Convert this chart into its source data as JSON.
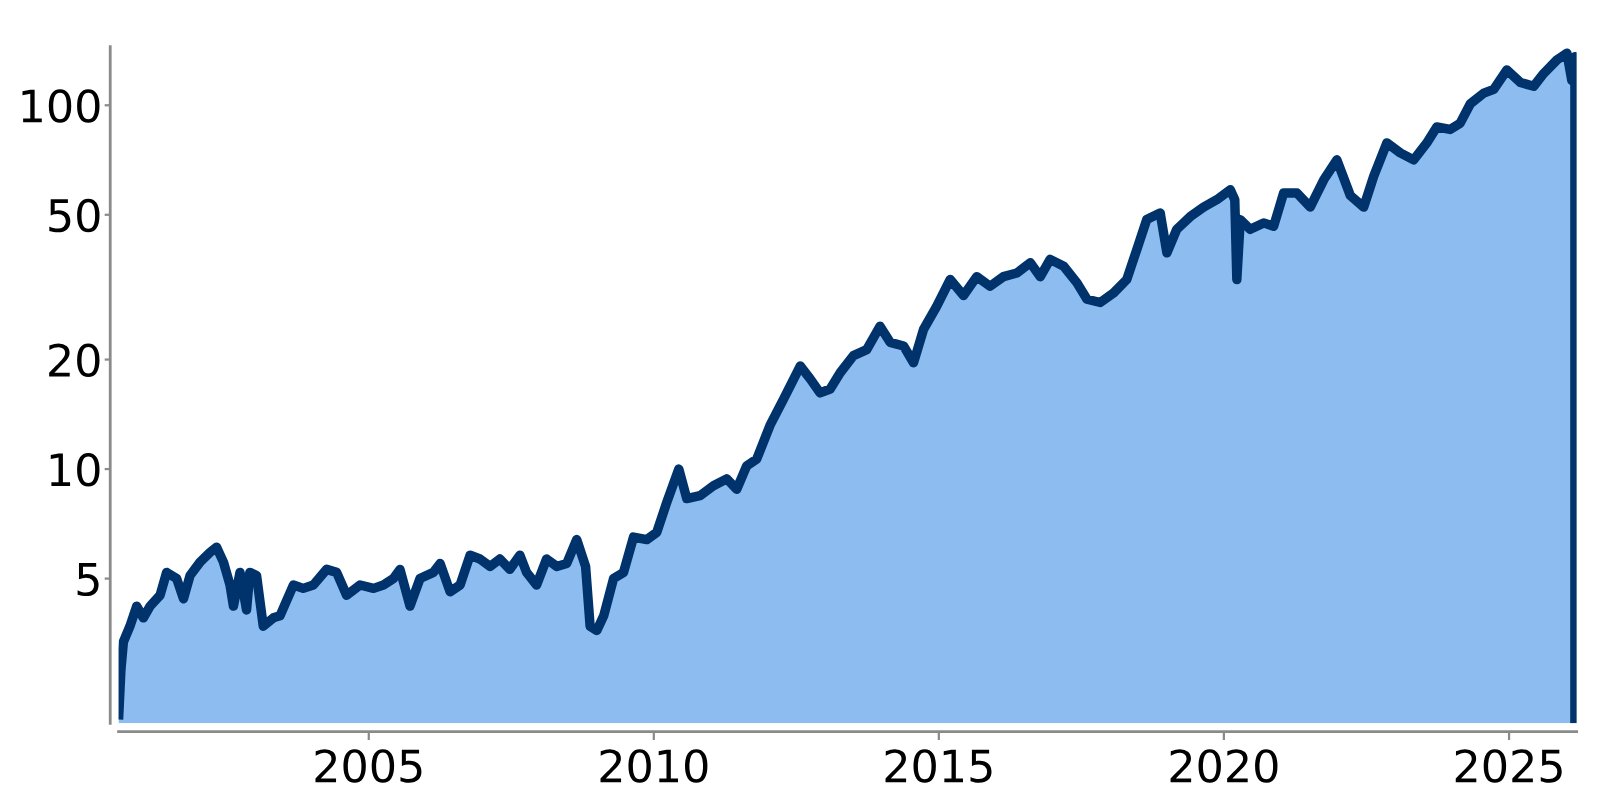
{
  "chart_data": {
    "type": "area",
    "log": "y",
    "grid": false,
    "x": [
      "2000-08-12",
      "2000-08-27",
      "2000-09-12",
      "2000-10-24",
      "2000-12-06",
      "2001-01-18",
      "2001-03-02",
      "2001-05-05",
      "2001-06-16",
      "2001-08-19",
      "2001-10-02",
      "2001-11-13",
      "2002-01-16",
      "2002-03-21",
      "2002-05-02",
      "2002-06-15",
      "2002-07-27",
      "2002-08-18",
      "2002-09-29",
      "2002-11-10",
      "2002-12-01",
      "2003-01-13",
      "2003-02-25",
      "2003-05-01",
      "2003-06-12",
      "2003-09-06",
      "2003-11-08",
      "2004-01-12",
      "2004-04-06",
      "2004-06-09",
      "2004-08-12",
      "2004-11-06",
      "2005-02-01",
      "2005-04-05",
      "2005-06-08",
      "2005-07-20",
      "2005-09-22",
      "2005-11-25",
      "2006-02-19",
      "2006-04-03",
      "2006-06-06",
      "2006-08-09",
      "2006-10-12",
      "2006-12-14",
      "2007-02-17",
      "2007-04-21",
      "2007-06-24",
      "2007-08-27",
      "2007-10-09",
      "2007-12-12",
      "2008-02-14",
      "2008-04-19",
      "2008-06-22",
      "2008-08-25",
      "2008-10-21",
      "2008-11-19",
      "2009-01-01",
      "2009-02-14",
      "2009-04-18",
      "2009-06-21",
      "2009-08-24",
      "2009-11-17",
      "2010-01-20",
      "2010-03-25",
      "2010-06-10",
      "2010-07-31",
      "2010-10-24",
      "2011-01-18",
      "2011-04-13",
      "2011-06-16",
      "2011-08-19",
      "2011-10-22",
      "2012-01-16",
      "2012-04-12",
      "2012-07-27",
      "2012-09-29",
      "2012-12-01",
      "2013-02-04",
      "2013-04-09",
      "2013-07-03",
      "2013-09-26",
      "2013-12-20",
      "2014-02-23",
      "2014-05-20",
      "2014-07-23",
      "2014-09-25",
      "2014-12-18",
      "2015-03-15",
      "2015-06-08",
      "2015-09-01",
      "2015-11-25",
      "2016-02-19",
      "2016-05-15",
      "2016-08-09",
      "2016-10-12",
      "2016-12-14",
      "2017-03-11",
      "2017-06-04",
      "2017-08-07",
      "2017-10-31",
      "2018-01-25",
      "2018-04-19",
      "2018-06-22",
      "2018-08-25",
      "2018-11-19",
      "2019-01-01",
      "2019-03-05",
      "2019-05-30",
      "2019-08-24",
      "2019-11-17",
      "2020-02-11",
      "2020-03-11",
      "2020-03-24",
      "2020-04-15",
      "2020-06-18",
      "2020-09-12",
      "2020-11-15",
      "2021-01-18",
      "2021-04-13",
      "2021-07-07",
      "2021-10-02",
      "2021-12-25",
      "2022-03-21",
      "2022-06-15",
      "2022-08-18",
      "2022-11-10",
      "2023-02-04",
      "2023-05-01",
      "2023-07-24",
      "2023-09-26",
      "2023-12-20",
      "2024-02-23",
      "2024-04-28",
      "2024-07-23",
      "2024-09-25",
      "2024-12-18",
      "2025-03-15",
      "2025-06-08",
      "2025-08-11",
      "2025-11-04",
      "2026-01-07",
      "2026-02-07",
      "2026-02-27"
    ],
    "series": [
      {
        "color": "#8cbcf0",
        "values": [
          2.05,
          2.8,
          3.35,
          3.7,
          4.2,
          3.9,
          4.2,
          4.5,
          5.2,
          5.0,
          4.4,
          5.1,
          5.55,
          5.9,
          6.1,
          5.55,
          4.8,
          4.2,
          5.2,
          4.1,
          5.2,
          5.1,
          3.7,
          3.9,
          3.95,
          4.8,
          4.7,
          4.8,
          5.3,
          5.2,
          4.5,
          4.8,
          4.7,
          4.8,
          5.0,
          5.3,
          4.2,
          5.0,
          5.2,
          5.5,
          4.6,
          4.8,
          5.8,
          5.66,
          5.4,
          5.66,
          5.3,
          5.8,
          5.2,
          4.8,
          5.66,
          5.4,
          5.5,
          6.4,
          5.4,
          3.7,
          3.6,
          3.95,
          5.0,
          5.2,
          6.5,
          6.4,
          6.7,
          8.1,
          10.0,
          8.3,
          8.45,
          9.0,
          9.4,
          8.8,
          10.2,
          10.65,
          13.2,
          15.6,
          19.2,
          17.7,
          16.2,
          16.6,
          18.4,
          20.5,
          21.3,
          24.7,
          22.3,
          21.8,
          19.6,
          24.2,
          28.0,
          33.2,
          30.0,
          33.8,
          31.8,
          33.8,
          34.6,
          36.9,
          33.8,
          37.7,
          36.1,
          32.5,
          29.3,
          28.7,
          30.5,
          33.2,
          40.1,
          48.5,
          50.6,
          39.3,
          45.6,
          49.4,
          52.5,
          55.0,
          58.6,
          55.0,
          33.2,
          48.5,
          45.6,
          47.5,
          46.5,
          57.4,
          57.4,
          52.5,
          62.4,
          70.8,
          56.5,
          52.5,
          63.8,
          78.8,
          74.0,
          70.8,
          78.8,
          87.2,
          85.8,
          89.3,
          101,
          108,
          110.6,
          125,
          115.5,
          112.8,
          122.3,
          133.3,
          139,
          117,
          136
        ]
      }
    ],
    "xlim": [
      "2000-08-12",
      "2026-03-10"
    ],
    "ylim": [
      2,
      145
    ],
    "xticks": [
      "2005",
      "2010",
      "2015",
      "2020",
      "2025"
    ],
    "yticks": [
      5,
      10,
      20,
      50,
      100
    ]
  }
}
